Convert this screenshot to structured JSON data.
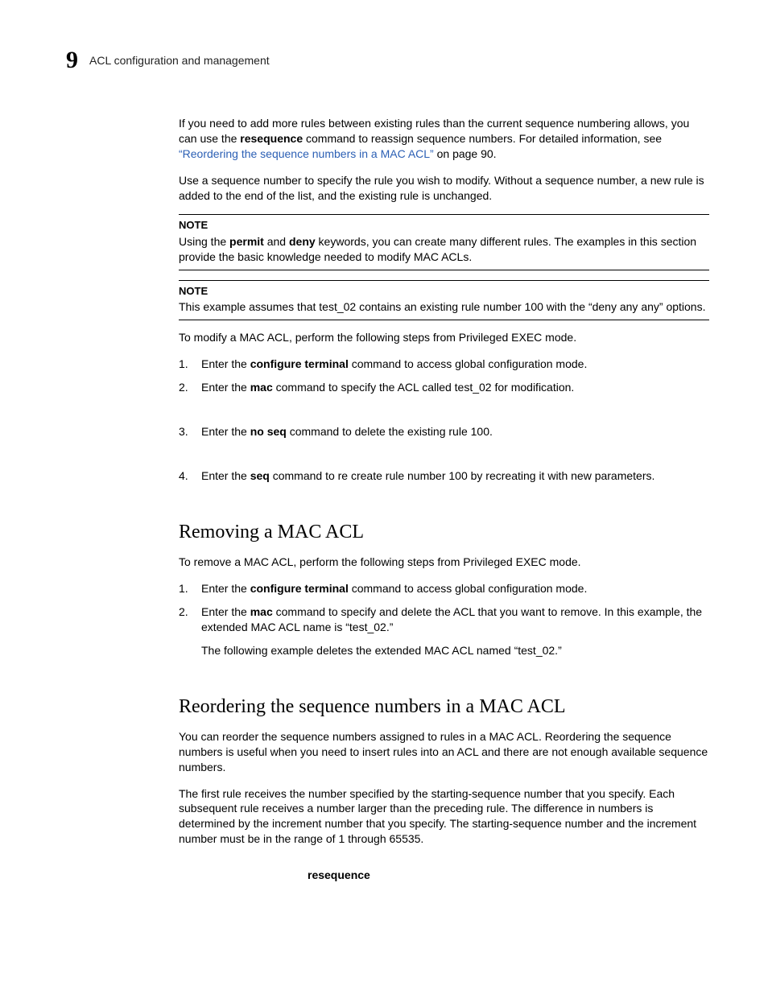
{
  "colors": {
    "background": "#ffffff",
    "text": "#000000",
    "link": "#2b5fb4",
    "rule": "#000000"
  },
  "typography": {
    "body_family": "Arial, Helvetica, sans-serif",
    "heading_family": "Georgia, 'Times New Roman', serif",
    "body_size_pt": 10.5,
    "heading_size_pt": 18,
    "chapter_number_size_pt": 22
  },
  "header": {
    "chapter_number": "9",
    "chapter_title": "ACL configuration and management"
  },
  "intro": {
    "para1_a": "If you need to add more rules between existing rules than the current sequence numbering allows, you can use the ",
    "para1_bold": "resequence",
    "para1_b": " command to reassign sequence numbers. For detailed information, see ",
    "para1_link": "“Reordering the sequence numbers in a MAC ACL”",
    "para1_c": " on page 90.",
    "para2": "Use a sequence number to specify the rule you wish to modify. Without a sequence number, a new rule is added to the end of the list, and the existing rule is unchanged."
  },
  "note1": {
    "label": "NOTE",
    "text_a": "Using the ",
    "bold1": "permit",
    "text_b": " and ",
    "bold2": "deny",
    "text_c": " keywords, you can create many different rules. The examples in this section provide the basic knowledge needed to modify MAC ACLs."
  },
  "note2": {
    "label": "NOTE",
    "text": "This example assumes that test_02 contains an existing rule number 100 with the “deny any any” options."
  },
  "modify_intro": "To modify a MAC ACL, perform the following steps from Privileged EXEC mode.",
  "modify_steps": {
    "s1_a": "Enter the ",
    "s1_bold": "configure terminal",
    "s1_b": " command to access global configuration mode.",
    "s2_a": "Enter the ",
    "s2_bold": "mac",
    "s2_b": " command to specify the ACL called test_02 for modification.",
    "s3_a": "Enter the ",
    "s3_bold": "no seq",
    "s3_b": " command to delete the existing rule 100.",
    "s4_a": "Enter the ",
    "s4_bold": "seq",
    "s4_b": " command to re create rule number 100 by recreating it with new parameters."
  },
  "removing": {
    "heading": "Removing a MAC ACL",
    "intro": "To remove a MAC ACL, perform the following steps from Privileged EXEC mode.",
    "s1_a": "Enter the ",
    "s1_bold": "configure terminal",
    "s1_b": " command to access global configuration mode.",
    "s2_a": "Enter the ",
    "s2_bold": "mac",
    "s2_b": " command to specify and delete the ACL that you want to remove. In this example, the extended MAC ACL name is “test_02.”",
    "s2_sub": "The following example deletes the extended MAC ACL named “test_02.”"
  },
  "reordering": {
    "heading": "Reordering the sequence numbers in a MAC ACL",
    "para1": "You can reorder the sequence numbers assigned to rules in a MAC ACL. Reordering the sequence numbers is useful when you need to insert rules into an ACL and there are not enough available sequence numbers.",
    "para2": "The first rule receives the number specified by the starting-sequence number that you specify. Each subsequent rule receives a number larger than the preceding rule. The difference in numbers is determined by the increment number that you specify. The starting-sequence number and the increment number must be in the range of 1 through 65535.",
    "resequence": "resequence"
  }
}
